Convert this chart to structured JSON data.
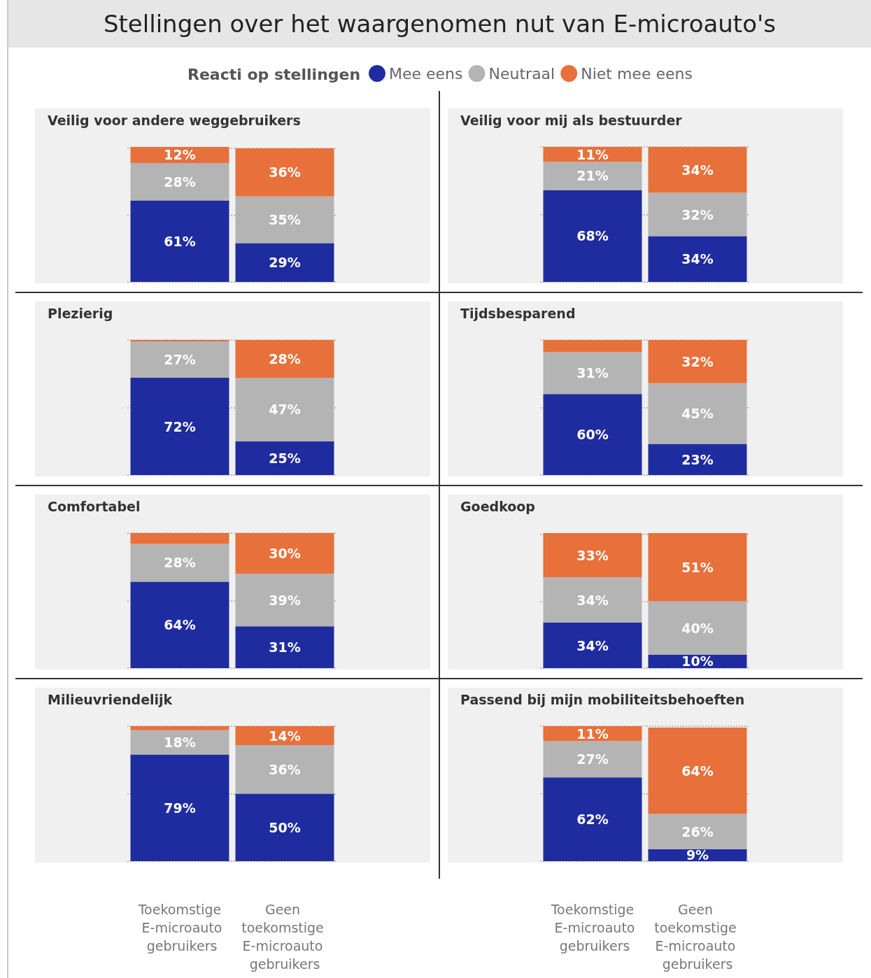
{
  "chart_data": [
    {
      "type": "other",
      "title": "Stellingen over het waargenomen nut van E-microauto's"
    },
    {
      "type": "bar",
      "stacked": true,
      "title": "Veilig voor andere weggebruikers",
      "legend": "top",
      "legend_title": "Reacti op stellingen",
      "categories": [
        "Toekomstige E-microauto gebruikers",
        "Geen toekomstige E-microauto gebruikers"
      ],
      "ylim": [
        0,
        101
      ],
      "yticks": [
        {
          "value": 0,
          "label": null
        },
        {
          "value": 50,
          "label": null
        },
        {
          "value": 100,
          "label": null
        }
      ],
      "grid": "y",
      "tick_labels": false,
      "series": [
        {
          "name": "Mee eens",
          "color": "#1f2c9f",
          "values": [
            61,
            29
          ],
          "value_labels": [
            "61%",
            "29%"
          ]
        },
        {
          "name": "Neutraal",
          "color": "#b4b4b4",
          "values": [
            28,
            35
          ],
          "value_labels": [
            "28%",
            "35%"
          ]
        },
        {
          "name": "Niet mee eens",
          "color": "#e8703a",
          "values": [
            12,
            36
          ],
          "value_labels": [
            "12%",
            "36%"
          ]
        }
      ]
    },
    {
      "type": "bar",
      "stacked": true,
      "title": "Veilig voor mij als bestuurder",
      "categories": [
        "Toekomstige E-microauto gebruikers",
        "Geen toekomstige E-microauto gebruikers"
      ],
      "ylim": [
        0,
        100
      ],
      "yticks": [
        {
          "value": 0,
          "label": null
        },
        {
          "value": 50,
          "label": null
        },
        {
          "value": 100,
          "label": null
        }
      ],
      "grid": "y",
      "tick_labels": false,
      "series": [
        {
          "color": "#1f2c9f",
          "values": [
            68,
            34
          ],
          "value_labels": [
            "68%",
            "34%"
          ]
        },
        {
          "color": "#b4b4b4",
          "values": [
            21,
            32
          ],
          "value_labels": [
            "21%",
            "32%"
          ]
        },
        {
          "color": "#e8703a",
          "values": [
            11,
            34
          ],
          "value_labels": [
            "11%",
            "34%"
          ]
        }
      ]
    },
    {
      "type": "bar",
      "stacked": true,
      "title": "Plezierig",
      "categories": [
        "Toekomstige E-microauto gebruikers",
        "Geen toekomstige E-microauto gebruikers"
      ],
      "ylim": [
        0,
        100
      ],
      "yticks": [
        {
          "value": 0,
          "label": null
        },
        {
          "value": 50,
          "label": null
        },
        {
          "value": 100,
          "label": null
        }
      ],
      "grid": "y",
      "tick_labels": false,
      "series": [
        {
          "color": "#1f2c9f",
          "values": [
            72,
            25
          ],
          "value_labels": [
            "72%",
            "25%"
          ]
        },
        {
          "color": "#b4b4b4",
          "values": [
            27,
            47
          ],
          "value_labels": [
            "27%",
            "47%"
          ]
        },
        {
          "color": "#e8703a",
          "values": [
            1,
            28
          ],
          "value_labels": [
            null,
            "28%"
          ]
        }
      ]
    },
    {
      "type": "bar",
      "stacked": true,
      "title": "Tijdsbesparend",
      "categories": [
        "Toekomstige E-microauto gebruikers",
        "Geen toekomstige E-microauto gebruikers"
      ],
      "ylim": [
        0,
        100
      ],
      "yticks": [
        {
          "value": 0,
          "label": null
        },
        {
          "value": 50,
          "label": null
        },
        {
          "value": 100,
          "label": null
        }
      ],
      "grid": "y",
      "tick_labels": false,
      "series": [
        {
          "color": "#1f2c9f",
          "values": [
            60,
            23
          ],
          "value_labels": [
            "60%",
            "23%"
          ]
        },
        {
          "color": "#b4b4b4",
          "values": [
            31,
            45
          ],
          "value_labels": [
            "31%",
            "45%"
          ]
        },
        {
          "color": "#e8703a",
          "values": [
            9,
            32
          ],
          "value_labels": [
            null,
            "32%"
          ]
        }
      ]
    },
    {
      "type": "bar",
      "stacked": true,
      "title": "Comfortabel",
      "categories": [
        "Toekomstige E-microauto gebruikers",
        "Geen toekomstige E-microauto gebruikers"
      ],
      "ylim": [
        0,
        100
      ],
      "yticks": [
        {
          "value": 0,
          "label": null
        },
        {
          "value": 50,
          "label": null
        },
        {
          "value": 100,
          "label": null
        }
      ],
      "grid": "y",
      "tick_labels": false,
      "series": [
        {
          "color": "#1f2c9f",
          "values": [
            64,
            31
          ],
          "value_labels": [
            "64%",
            "31%"
          ]
        },
        {
          "color": "#b4b4b4",
          "values": [
            28,
            39
          ],
          "value_labels": [
            "28%",
            "39%"
          ]
        },
        {
          "color": "#e8703a",
          "values": [
            8,
            30
          ],
          "value_labels": [
            null,
            "30%"
          ]
        }
      ]
    },
    {
      "type": "bar",
      "stacked": true,
      "title": "Goedkoop",
      "categories": [
        "Toekomstige E-microauto gebruikers",
        "Geen toekomstige E-microauto gebruikers"
      ],
      "ylim": [
        0,
        101
      ],
      "yticks": [
        {
          "value": 0,
          "label": null
        },
        {
          "value": 50,
          "label": null
        },
        {
          "value": 100,
          "label": null
        }
      ],
      "grid": "y",
      "tick_labels": false,
      "series": [
        {
          "color": "#1f2c9f",
          "values": [
            34,
            10
          ],
          "value_labels": [
            "34%",
            "10%"
          ]
        },
        {
          "color": "#b4b4b4",
          "values": [
            34,
            40
          ],
          "value_labels": [
            "34%",
            "40%"
          ]
        },
        {
          "color": "#e8703a",
          "values": [
            33,
            51
          ],
          "value_labels": [
            "33%",
            "51%"
          ]
        }
      ]
    },
    {
      "type": "bar",
      "stacked": true,
      "title": "Milieuvriendelijk",
      "categories": [
        "Toekomstige E-microauto gebruikers",
        "Geen toekomstige E-microauto gebruikers"
      ],
      "ylim": [
        0,
        100
      ],
      "yticks": [
        {
          "value": 0,
          "label": null
        },
        {
          "value": 50,
          "label": null
        },
        {
          "value": 100,
          "label": null
        }
      ],
      "grid": "y",
      "tick_labels": "x",
      "series": [
        {
          "color": "#1f2c9f",
          "values": [
            79,
            50
          ],
          "value_labels": [
            "79%",
            "50%"
          ]
        },
        {
          "color": "#b4b4b4",
          "values": [
            18,
            36
          ],
          "value_labels": [
            "18%",
            "36%"
          ]
        },
        {
          "color": "#e8703a",
          "values": [
            3,
            14
          ],
          "value_labels": [
            null,
            "14%"
          ]
        }
      ]
    },
    {
      "type": "bar",
      "stacked": true,
      "title": "Passend bij mijn mobiliteitsbehoeften",
      "categories": [
        "Toekomstige E-microauto gebruikers",
        "Geen toekomstige E-microauto gebruikers"
      ],
      "ylim": [
        0,
        100
      ],
      "yticks": [
        {
          "value": 0,
          "label": null
        },
        {
          "value": 50,
          "label": null
        },
        {
          "value": 100,
          "label": null
        }
      ],
      "grid": "y",
      "tick_labels": "x",
      "series": [
        {
          "color": "#1f2c9f",
          "values": [
            62,
            9
          ],
          "value_labels": [
            "62%",
            "9%"
          ]
        },
        {
          "color": "#b4b4b4",
          "values": [
            27,
            26
          ],
          "value_labels": [
            "27%",
            "26%"
          ]
        },
        {
          "color": "#e8703a",
          "values": [
            11,
            64
          ],
          "value_labels": [
            "11%",
            "64%"
          ]
        }
      ]
    }
  ]
}
